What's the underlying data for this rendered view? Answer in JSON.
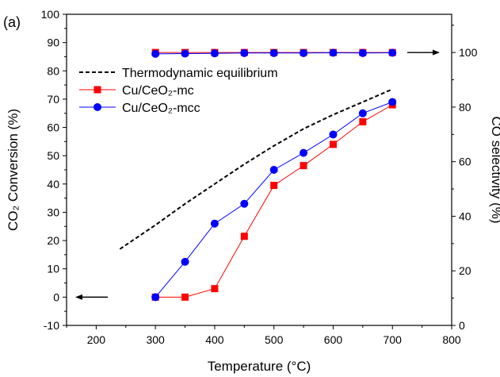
{
  "panel_label": "(a)",
  "chart_data": {
    "type": "line",
    "title": "",
    "xlabel": "Temperature (°C)",
    "ylabel": "CO₂ Conversion (%)",
    "ylabel_right": "CO selectivity (%)",
    "xlim": [
      150,
      800
    ],
    "ylim": [
      -10,
      100
    ],
    "ylim_right": [
      0,
      114
    ],
    "x_ticks": [
      200,
      300,
      400,
      500,
      600,
      700,
      800
    ],
    "y_ticks": [
      -10,
      0,
      10,
      20,
      30,
      40,
      50,
      60,
      70,
      80,
      90,
      100
    ],
    "y_right_ticks": [
      0,
      20,
      40,
      60,
      80,
      100
    ],
    "grid": false,
    "legend_position": "upper-left",
    "legend": [
      "Thermodynamic equilibrium",
      "Cu/CeO₂-mc",
      "Cu/CeO₂-mcc"
    ],
    "series": [
      {
        "name": "Thermodynamic equilibrium",
        "axis": "left",
        "style": "dashed",
        "color": "#000000",
        "x": [
          240,
          300,
          350,
          400,
          450,
          500,
          550,
          600,
          650,
          700
        ],
        "y": [
          17,
          25.5,
          33,
          40,
          47,
          53.5,
          59.5,
          64.5,
          69,
          73.5
        ]
      },
      {
        "name": "Cu/CeO₂-mc",
        "axis": "left",
        "marker": "square",
        "color": "#ff0000",
        "x": [
          300,
          350,
          400,
          450,
          500,
          550,
          600,
          650,
          700
        ],
        "y": [
          0,
          0,
          3,
          21.5,
          39.5,
          46.5,
          54,
          62,
          68
        ]
      },
      {
        "name": "Cu/CeO₂-mcc",
        "axis": "left",
        "marker": "circle",
        "color": "#0000ff",
        "x": [
          300,
          350,
          400,
          450,
          500,
          550,
          600,
          650,
          700
        ],
        "y": [
          0,
          12.5,
          26,
          33,
          45,
          51,
          57.5,
          65,
          69
        ]
      },
      {
        "name": "Cu/CeO₂-mc selectivity",
        "axis": "right",
        "marker": "square",
        "color": "#ff0000",
        "x": [
          300,
          350,
          400,
          450,
          500,
          550,
          600,
          650,
          700
        ],
        "y": [
          100,
          100,
          100,
          100,
          100,
          100,
          100,
          100,
          100
        ]
      },
      {
        "name": "Cu/CeO₂-mcc selectivity",
        "axis": "right",
        "marker": "circle",
        "color": "#0000ff",
        "x": [
          300,
          350,
          400,
          450,
          500,
          550,
          600,
          650,
          700
        ],
        "y": [
          99.5,
          99.6,
          99.7,
          99.8,
          99.8,
          99.8,
          99.9,
          99.8,
          99.9
        ]
      }
    ],
    "annotations": [
      "arrow-left-to-left-axis",
      "arrow-right-to-right-axis"
    ]
  }
}
